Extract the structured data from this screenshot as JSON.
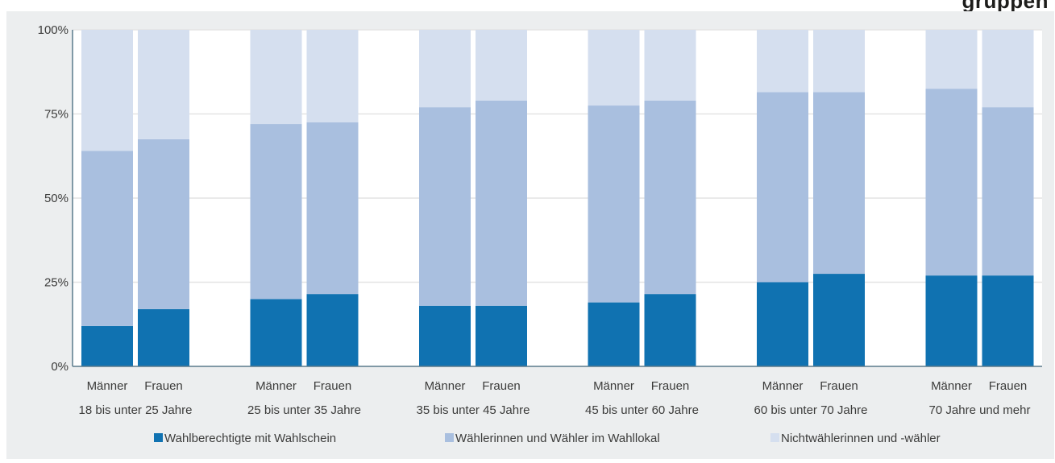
{
  "header": {
    "title_fragment": "gruppen"
  },
  "chart_data": {
    "type": "bar",
    "stacked": true,
    "percent": true,
    "title": "",
    "xlabel": "",
    "ylabel": "",
    "ylim": [
      0,
      100
    ],
    "y_ticks": [
      "0%",
      "25%",
      "50%",
      "75%",
      "100%"
    ],
    "y_tick_values": [
      0,
      25,
      50,
      75,
      100
    ],
    "grid": true,
    "legend_position": "bottom",
    "groups": [
      {
        "label": "18 bis unter 25 Jahre",
        "bars": [
          {
            "label": "Männer",
            "values": [
              12,
              52,
              36
            ]
          },
          {
            "label": "Frauen",
            "values": [
              17,
              50.5,
              32.5
            ]
          }
        ]
      },
      {
        "label": "25 bis unter 35 Jahre",
        "bars": [
          {
            "label": "Männer",
            "values": [
              20,
              52,
              28
            ]
          },
          {
            "label": "Frauen",
            "values": [
              21.5,
              51,
              27.5
            ]
          }
        ]
      },
      {
        "label": "35 bis unter  45 Jahre",
        "bars": [
          {
            "label": "Männer",
            "values": [
              18,
              59,
              23
            ]
          },
          {
            "label": "Frauen",
            "values": [
              18,
              61,
              21
            ]
          }
        ]
      },
      {
        "label": "45 bis unter  60 Jahre",
        "bars": [
          {
            "label": "Männer",
            "values": [
              19,
              58.5,
              22.5
            ]
          },
          {
            "label": "Frauen",
            "values": [
              21.5,
              57.5,
              21
            ]
          }
        ]
      },
      {
        "label": "60 bis unter 70 Jahre",
        "bars": [
          {
            "label": "Männer",
            "values": [
              25,
              56.5,
              18.5
            ]
          },
          {
            "label": "Frauen",
            "values": [
              27.5,
              54,
              18.5
            ]
          }
        ]
      },
      {
        "label": "70 Jahre und mehr",
        "bars": [
          {
            "label": "Männer",
            "values": [
              27,
              55.5,
              17.5
            ]
          },
          {
            "label": "Frauen",
            "values": [
              27,
              50,
              23
            ]
          }
        ]
      }
    ],
    "series": [
      {
        "name": "Wahlberechtigte mit Wahlschein",
        "color": "#1072b1"
      },
      {
        "name": "Wählerinnen und Wähler im Wahllokal",
        "color": "#a9bfdf"
      },
      {
        "name": "Nichtwählerinnen und -wähler",
        "color": "#d5dfef"
      }
    ]
  }
}
